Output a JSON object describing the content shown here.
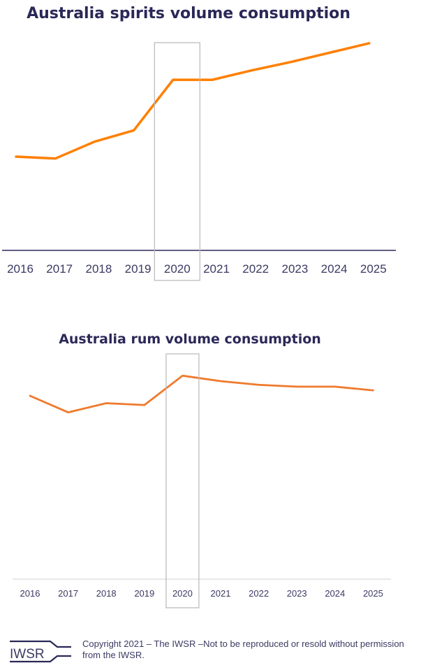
{
  "colors": {
    "title": "#2a2858",
    "axis_dark": "#2a2858",
    "axis_light": "#d0d0d0",
    "highlight_box": "#bdbdbd",
    "spirits_line": "#ff7f00",
    "rum_line": "#ef7a2c"
  },
  "chart_data": [
    {
      "type": "line",
      "title": "Australia spirits volume consumption",
      "categories": [
        "2016",
        "2017",
        "2018",
        "2019",
        "2020",
        "2021",
        "2022",
        "2023",
        "2024",
        "2025"
      ],
      "values": [
        100,
        98,
        116,
        128,
        182,
        182,
        192,
        201,
        211,
        221
      ],
      "value_note": "relative level, 2016 = 100 (no y-axis printed)",
      "highlighted_category": "2020",
      "grid": false,
      "legend": "none"
    },
    {
      "type": "line",
      "title": "Australia rum volume consumption",
      "categories": [
        "2016",
        "2017",
        "2018",
        "2019",
        "2020",
        "2021",
        "2022",
        "2023",
        "2024",
        "2025"
      ],
      "values": [
        100,
        91,
        96,
        95,
        111,
        108,
        106,
        105,
        105,
        103
      ],
      "value_note": "relative level, 2016 = 100 (no y-axis printed)",
      "highlighted_category": "2020",
      "grid": false,
      "legend": "none"
    }
  ],
  "footer": {
    "logo_text": "IWSR",
    "copyright": "Copyright 2021 – The IWSR –Not to be reproduced or resold without permission from the IWSR."
  }
}
